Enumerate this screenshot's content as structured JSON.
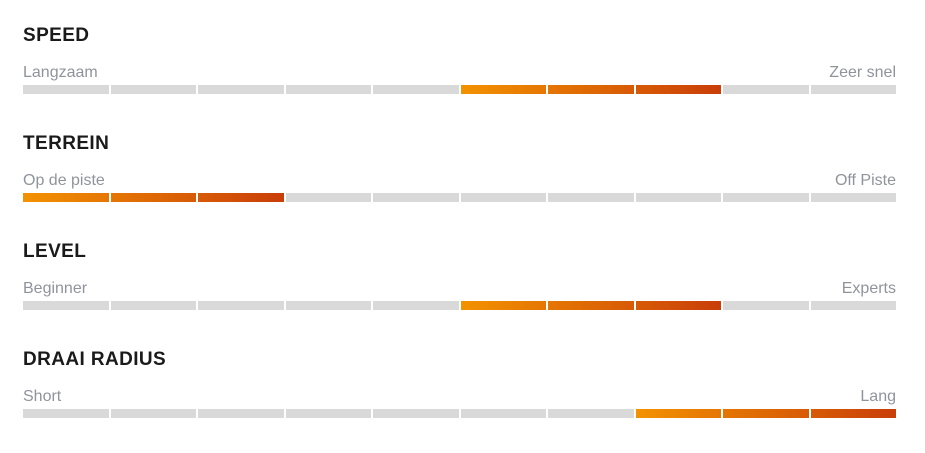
{
  "colors": {
    "background": "#ffffff",
    "title_text": "#1a1a1a",
    "label_text": "#8f949c",
    "segment_empty": "#d9d9d9",
    "gradient_start": "#f39200",
    "gradient_end": "#c93e09"
  },
  "chart_data": {
    "type": "bar",
    "subtype": "segmented-rating-meters",
    "scale": [
      0,
      10
    ],
    "segments_per_meter": 10,
    "legend_position": "none",
    "meters": [
      {
        "title": "SPEED",
        "left_label": "Langzaam",
        "right_label": "Zeer snel",
        "segments": 10,
        "filled_from": 6,
        "filled_to": 8,
        "value_range": [
          5,
          8
        ]
      },
      {
        "title": "TERREIN",
        "left_label": "Op de piste",
        "right_label": "Off Piste",
        "segments": 10,
        "filled_from": 1,
        "filled_to": 3,
        "value_range": [
          0,
          3
        ]
      },
      {
        "title": "LEVEL",
        "left_label": "Beginner",
        "right_label": "Experts",
        "segments": 10,
        "filled_from": 6,
        "filled_to": 8,
        "value_range": [
          5,
          8
        ]
      },
      {
        "title": "DRAAI RADIUS",
        "left_label": "Short",
        "right_label": "Lang",
        "segments": 10,
        "filled_from": 8,
        "filled_to": 10,
        "value_range": [
          7,
          10
        ]
      }
    ]
  }
}
